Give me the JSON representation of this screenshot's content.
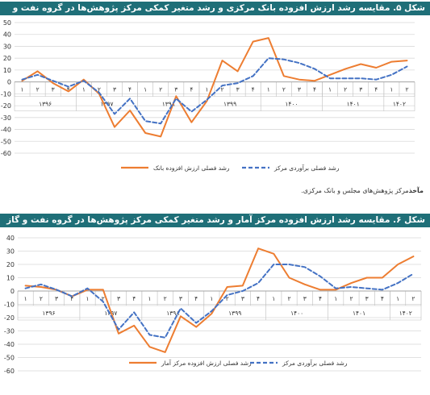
{
  "source": {
    "label": "مآخذ",
    "text": "مرکز پژوهش‌های مجلس و بانک مرکزی."
  },
  "chart_data": [
    {
      "type": "line",
      "title": "شکل ۵. مقایسه رشد ارزش افزوده بانک مرکزی و رشد متغیر کمکی مرکز پژوهش‌ها در گروه نفت و گاز طبیعی",
      "ylim": [
        -60,
        50
      ],
      "yticks": [
        50,
        40,
        30,
        20,
        10,
        0,
        -10,
        -20,
        -30,
        -40,
        -50,
        -60
      ],
      "quarter_labels": [
        "۱",
        "۲",
        "۳",
        "۴",
        "۱",
        "۲",
        "۳",
        "۴",
        "۱",
        "۲",
        "۳",
        "۴",
        "۱",
        "۲",
        "۳",
        "۴",
        "۱",
        "۲",
        "۳",
        "۴",
        "۱",
        "۲",
        "۳",
        "۴",
        "۱",
        "۲"
      ],
      "year_labels": [
        "۱۳۹۶",
        "۱۳۹۷",
        "۱۳۹۸",
        "۱۳۹۹",
        "۱۴۰۰",
        "۱۴۰۱",
        "۱۴۰۲"
      ],
      "year_quarter_counts": [
        4,
        4,
        4,
        4,
        4,
        4,
        2
      ],
      "series": [
        {
          "name": "رشد فصلی ارزش افزوده بانک",
          "color": "#ed7d31",
          "style": "solid",
          "values": [
            1,
            9,
            -1,
            -8,
            2,
            -10,
            -38,
            -24,
            -43,
            -46,
            -12,
            -34,
            -16,
            18,
            9,
            34,
            37,
            5,
            2,
            1,
            6,
            11,
            15,
            12,
            17,
            18
          ]
        },
        {
          "name": "رشد فصلی برآوردی مرکز",
          "color": "#4472c4",
          "style": "dashed",
          "values": [
            2,
            6,
            1,
            -4,
            1,
            -9,
            -27,
            -14,
            -33,
            -35,
            -14,
            -25,
            -15,
            -3,
            -1,
            5,
            20,
            19,
            16,
            11,
            3,
            3,
            3,
            2,
            6,
            13
          ]
        }
      ]
    },
    {
      "type": "line",
      "title": "شکل ۶. مقایسه رشد ارزش افزوده مرکز آمار و رشد متغیر کمکی مرکز پژوهش‌ها در گروه نفت و گاز طبیعی",
      "ylim": [
        -60,
        40
      ],
      "yticks": [
        40,
        30,
        20,
        10,
        0,
        -10,
        -20,
        -30,
        -40,
        -50,
        -60
      ],
      "quarter_labels": [
        "۱",
        "۲",
        "۳",
        "۴",
        "۱",
        "۲",
        "۳",
        "۴",
        "۱",
        "۲",
        "۳",
        "۴",
        "۱",
        "۲",
        "۳",
        "۴",
        "۱",
        "۲",
        "۳",
        "۴",
        "۱",
        "۲",
        "۳",
        "۴",
        "۱",
        "۲"
      ],
      "year_labels": [
        "۱۳۹۶",
        "۱۳۹۷",
        "۱۳۹۸",
        "۱۳۹۹",
        "۱۴۰۰",
        "۱۴۰۱",
        "۱۴۰۲"
      ],
      "year_quarter_counts": [
        4,
        4,
        4,
        4,
        4,
        4,
        2
      ],
      "series": [
        {
          "name": "رشد فصلی ارزش افزوده مرکز آمار",
          "color": "#ed7d31",
          "style": "solid",
          "values": [
            4,
            3,
            1,
            -4,
            1,
            1,
            -32,
            -26,
            -42,
            -46,
            -19,
            -27,
            -17,
            3,
            4,
            32,
            28,
            10,
            5,
            1,
            1,
            6,
            10,
            10,
            20,
            26
          ]
        },
        {
          "name": "رشد فصلی برآوردی مرکز",
          "color": "#4472c4",
          "style": "dashed",
          "values": [
            2,
            5,
            1,
            -4,
            2,
            -8,
            -29,
            -16,
            -33,
            -35,
            -13,
            -24,
            -15,
            -3,
            0,
            6,
            20,
            20,
            18,
            11,
            2,
            3,
            2,
            1,
            6,
            13
          ]
        }
      ]
    }
  ]
}
